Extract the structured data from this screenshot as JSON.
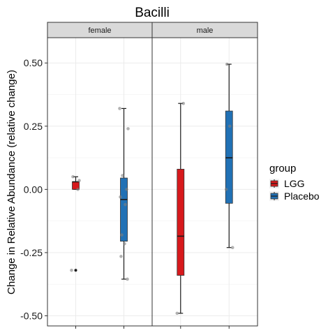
{
  "chart_data": {
    "type": "box",
    "title": "Bacilli",
    "xlabel": "",
    "ylabel": "Change in Relative Abundance (relative change)",
    "facets": [
      "female",
      "male"
    ],
    "y_ticks": [
      0.5,
      0.25,
      0.0,
      -0.25,
      -0.5
    ],
    "y_tick_labels": [
      "0.50",
      "0.25",
      "0.00",
      "-0.25",
      "-0.50"
    ],
    "ylim": [
      -0.54,
      0.6
    ],
    "grid": true,
    "legend": {
      "title": "group",
      "position": "right",
      "entries": [
        {
          "label": "LGG",
          "color": "#d7191c"
        },
        {
          "label": "Placebo",
          "color": "#2171b5"
        }
      ]
    },
    "boxes": [
      {
        "facet": "female",
        "group": "LGG",
        "whisker_low": 0.0,
        "q1": 0.0,
        "median": 0.03,
        "q3": 0.03,
        "whisker_high": 0.05,
        "outliers": [
          -0.32
        ],
        "points": [
          0.05,
          0.035,
          0.0,
          -0.32
        ]
      },
      {
        "facet": "female",
        "group": "Placebo",
        "whisker_low": -0.355,
        "q1": -0.205,
        "median": -0.04,
        "q3": 0.045,
        "whisker_high": 0.32,
        "outliers": [],
        "points": [
          0.32,
          0.24,
          0.055,
          0.0,
          -0.03,
          -0.06,
          -0.18,
          -0.215,
          -0.265,
          -0.355
        ]
      },
      {
        "facet": "male",
        "group": "LGG",
        "whisker_low": -0.49,
        "q1": -0.34,
        "median": -0.185,
        "q3": 0.08,
        "whisker_high": 0.34,
        "outliers": [],
        "points": [
          0.34,
          -0.49
        ]
      },
      {
        "facet": "male",
        "group": "Placebo",
        "whisker_low": -0.23,
        "q1": -0.055,
        "median": 0.125,
        "q3": 0.31,
        "whisker_high": 0.495,
        "outliers": [],
        "points": [
          0.495,
          0.25,
          0.0,
          -0.23
        ]
      }
    ]
  }
}
